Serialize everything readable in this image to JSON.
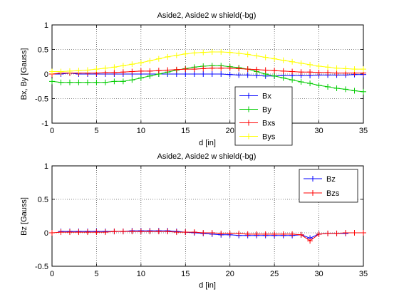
{
  "chart_data": [
    {
      "type": "line",
      "title": "Aside2, Aside2 w shield(-bg)",
      "xlabel": "d [in]",
      "ylabel": "Bx, By [Gauss]",
      "xlim": [
        0,
        35
      ],
      "ylim": [
        -1,
        1
      ],
      "xticks": [
        "0",
        "5",
        "10",
        "15",
        "20",
        "25",
        "30",
        "35"
      ],
      "yticks": [
        "-1",
        "-0.5",
        "0",
        "0.5",
        "1"
      ],
      "grid": true,
      "legend_position": "lower-right",
      "series": [
        {
          "name": "Bx",
          "color": "#0000ff",
          "x": [
            0,
            1,
            2,
            3,
            4,
            5,
            6,
            7,
            8,
            9,
            10,
            11,
            12,
            13,
            14,
            15,
            16,
            17,
            18,
            19,
            20,
            21,
            22,
            23,
            24,
            25,
            26,
            27,
            28,
            29,
            30,
            31,
            32,
            33,
            34,
            35
          ],
          "y": [
            0.0,
            0.0,
            0.02,
            0.0,
            0.0,
            0.0,
            0.0,
            0.0,
            0.0,
            0.0,
            0.0,
            0.0,
            0.0,
            0.0,
            0.0,
            0.0,
            0.0,
            0.0,
            0.0,
            0.0,
            -0.01,
            -0.02,
            -0.02,
            -0.03,
            -0.04,
            -0.04,
            -0.03,
            -0.03,
            -0.03,
            -0.03,
            -0.02,
            -0.02,
            -0.02,
            -0.02,
            -0.01,
            -0.01
          ]
        },
        {
          "name": "By",
          "color": "#00cc00",
          "x": [
            0,
            1,
            2,
            3,
            4,
            5,
            6,
            7,
            8,
            9,
            10,
            11,
            12,
            13,
            14,
            15,
            16,
            17,
            18,
            19,
            20,
            21,
            22,
            23,
            24,
            25,
            26,
            27,
            28,
            29,
            30,
            31,
            32,
            33,
            34,
            35
          ],
          "y": [
            -0.15,
            -0.17,
            -0.17,
            -0.17,
            -0.17,
            -0.17,
            -0.17,
            -0.15,
            -0.15,
            -0.12,
            -0.08,
            -0.04,
            0.0,
            0.04,
            0.08,
            0.11,
            0.14,
            0.16,
            0.17,
            0.17,
            0.15,
            0.13,
            0.1,
            0.05,
            0.0,
            -0.04,
            -0.08,
            -0.12,
            -0.16,
            -0.19,
            -0.23,
            -0.26,
            -0.29,
            -0.31,
            -0.34,
            -0.36
          ]
        },
        {
          "name": "Bxs",
          "color": "#ff0000",
          "x": [
            0,
            1,
            2,
            3,
            4,
            5,
            6,
            7,
            8,
            9,
            10,
            11,
            12,
            13,
            14,
            15,
            16,
            17,
            18,
            19,
            20,
            21,
            22,
            23,
            24,
            25,
            26,
            27,
            28,
            29,
            30,
            31,
            32,
            33,
            34,
            35
          ],
          "y": [
            0.0,
            0.02,
            0.02,
            0.02,
            0.02,
            0.02,
            0.03,
            0.03,
            0.04,
            0.05,
            0.06,
            0.06,
            0.07,
            0.08,
            0.09,
            0.1,
            0.1,
            0.11,
            0.12,
            0.12,
            0.12,
            0.11,
            0.1,
            0.09,
            0.08,
            0.07,
            0.06,
            0.05,
            0.04,
            0.04,
            0.03,
            0.03,
            0.02,
            0.02,
            0.02,
            0.02
          ]
        },
        {
          "name": "Bys",
          "color": "#ffff00",
          "x": [
            0,
            1,
            2,
            3,
            4,
            5,
            6,
            7,
            8,
            9,
            10,
            11,
            12,
            13,
            14,
            15,
            16,
            17,
            18,
            19,
            20,
            21,
            22,
            23,
            24,
            25,
            26,
            27,
            28,
            29,
            30,
            31,
            32,
            33,
            34,
            35
          ],
          "y": [
            0.05,
            0.05,
            0.06,
            0.07,
            0.08,
            0.1,
            0.12,
            0.14,
            0.17,
            0.2,
            0.23,
            0.27,
            0.31,
            0.35,
            0.38,
            0.41,
            0.43,
            0.44,
            0.45,
            0.45,
            0.44,
            0.42,
            0.4,
            0.37,
            0.34,
            0.31,
            0.28,
            0.25,
            0.22,
            0.19,
            0.16,
            0.14,
            0.12,
            0.11,
            0.1,
            0.1
          ]
        }
      ]
    },
    {
      "type": "line",
      "title": "Aside2, Aside2 w shield(-bg)",
      "xlabel": "d [in]",
      "ylabel": "Bz [Gauss]",
      "xlim": [
        0,
        35
      ],
      "ylim": [
        -0.5,
        1
      ],
      "xticks": [
        "0",
        "5",
        "10",
        "15",
        "20",
        "25",
        "30",
        "35"
      ],
      "yticks": [
        "-0.5",
        "0",
        "0.5",
        "1"
      ],
      "grid": true,
      "legend_position": "top-right",
      "series": [
        {
          "name": "Bz",
          "color": "#0000ff",
          "x": [
            1,
            2,
            3,
            4,
            5,
            6,
            7,
            8,
            9,
            10,
            11,
            12,
            13,
            14,
            15,
            16,
            17,
            18,
            19,
            20,
            21,
            22,
            23,
            24,
            25,
            26,
            27,
            28,
            29,
            30,
            31,
            32,
            33
          ],
          "y": [
            0.02,
            0.02,
            0.02,
            0.02,
            0.02,
            0.02,
            0.02,
            0.02,
            0.03,
            0.03,
            0.03,
            0.03,
            0.03,
            0.02,
            0.01,
            0.0,
            -0.01,
            -0.02,
            -0.03,
            -0.03,
            -0.04,
            -0.04,
            -0.04,
            -0.04,
            -0.04,
            -0.04,
            -0.04,
            -0.03,
            -0.08,
            -0.02,
            -0.01,
            -0.01,
            -0.01
          ]
        },
        {
          "name": "Bzs",
          "color": "#ff0000",
          "x": [
            0,
            1,
            2,
            3,
            4,
            5,
            6,
            7,
            8,
            9,
            10,
            11,
            12,
            13,
            14,
            15,
            16,
            17,
            18,
            19,
            20,
            21,
            22,
            23,
            24,
            25,
            26,
            27,
            28,
            29,
            30,
            31,
            32,
            33,
            34,
            35
          ],
          "y": [
            0.0,
            0.01,
            0.01,
            0.01,
            0.01,
            0.01,
            0.01,
            0.02,
            0.02,
            0.02,
            0.02,
            0.02,
            0.02,
            0.02,
            0.01,
            0.01,
            0.01,
            0.0,
            0.0,
            -0.01,
            -0.01,
            -0.01,
            -0.02,
            -0.02,
            -0.02,
            -0.02,
            -0.02,
            -0.02,
            -0.03,
            -0.12,
            -0.02,
            -0.01,
            -0.01,
            0.0,
            0.0,
            0.0
          ]
        }
      ]
    }
  ]
}
